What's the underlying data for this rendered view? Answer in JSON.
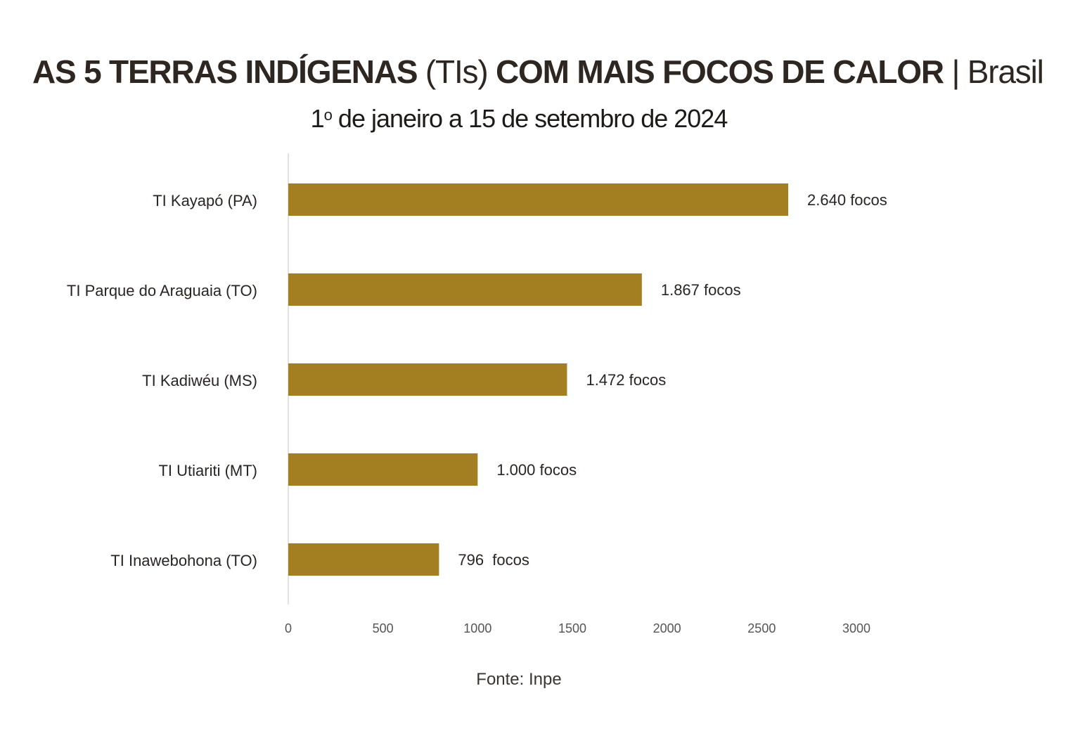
{
  "header": {
    "title_part1": "AS 5 TERRAS INDÍGENAS",
    "title_part2": " (TIs) ",
    "title_part3": "COM MAIS FOCOS DE CALOR",
    "title_part4": " | Brasil",
    "subtitle_pre": "1",
    "subtitle_sup": "o",
    "subtitle_post": " de janeiro a 15 de setembro de 2024"
  },
  "footer": {
    "source": "Fonte: Inpe"
  },
  "colors": {
    "bar": "#a47f22",
    "text": "#2a2522",
    "axis": "#e3e3e3",
    "tick": "#555555"
  },
  "chart_data": {
    "type": "bar",
    "orientation": "horizontal",
    "categories": [
      "TI Kayapó (PA)",
      "TI Parque do Araguaia (TO)",
      "TI Kadiwéu (MS)",
      "TI Utiariti (MT)",
      "TI Inawebohona (TO)"
    ],
    "values": [
      2640,
      1867,
      1472,
      1000,
      796
    ],
    "data_labels": [
      "2.640 focos",
      "1.867 focos",
      "1.472 focos",
      "1.000 focos",
      "796  focos"
    ],
    "xlim": [
      0,
      3000
    ],
    "x_ticks": [
      0,
      500,
      1000,
      1500,
      2000,
      2500,
      3000
    ],
    "grid": false,
    "legend": "none"
  }
}
